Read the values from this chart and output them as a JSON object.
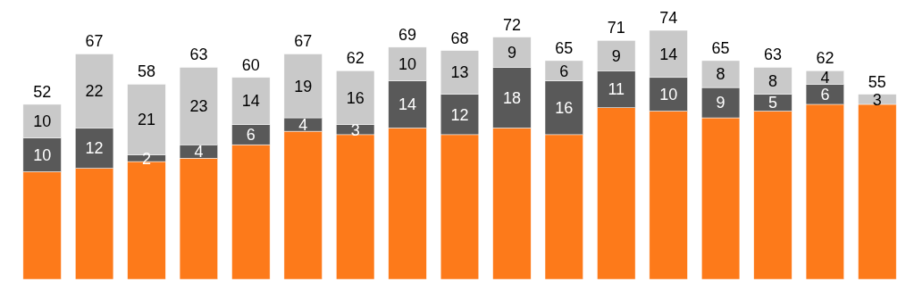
{
  "chart_data": {
    "type": "bar",
    "stacked": true,
    "categories": [
      null,
      null,
      null,
      null,
      null,
      null,
      null,
      null,
      null,
      null,
      null,
      null,
      null,
      null,
      null,
      null,
      null
    ],
    "series": [
      {
        "color": "#fd7a1a",
        "values": [
          32,
          33,
          35,
          36,
          40,
          44,
          43,
          45,
          43,
          45,
          43,
          51,
          50,
          48,
          50,
          52,
          52
        ],
        "value_labels": [
          null,
          null,
          null,
          null,
          null,
          null,
          null,
          null,
          null,
          null,
          null,
          null,
          null,
          null,
          null,
          null,
          null
        ]
      },
      {
        "color": "#595959",
        "values": [
          10,
          12,
          2,
          4,
          6,
          4,
          3,
          14,
          12,
          18,
          16,
          11,
          10,
          9,
          5,
          6,
          null
        ],
        "value_labels": [
          "10",
          "12",
          "2",
          "4",
          "6",
          "4",
          "3",
          "14",
          "12",
          "18",
          "16",
          "11",
          "10",
          "9",
          "5",
          "6",
          null
        ]
      },
      {
        "color": "#c9c9c9",
        "values": [
          10,
          22,
          21,
          23,
          14,
          19,
          16,
          10,
          13,
          9,
          6,
          9,
          14,
          8,
          8,
          4,
          3
        ],
        "value_labels": [
          "10",
          "22",
          "21",
          "23",
          "14",
          "19",
          "16",
          "10",
          "13",
          "9",
          "6",
          "9",
          "14",
          "8",
          "8",
          "4",
          "3"
        ]
      }
    ],
    "totals": [
      "52",
      "67",
      "58",
      "63",
      "60",
      "67",
      "62",
      "69",
      "68",
      "72",
      "65",
      "71",
      "74",
      "65",
      "63",
      "62",
      "55"
    ]
  }
}
